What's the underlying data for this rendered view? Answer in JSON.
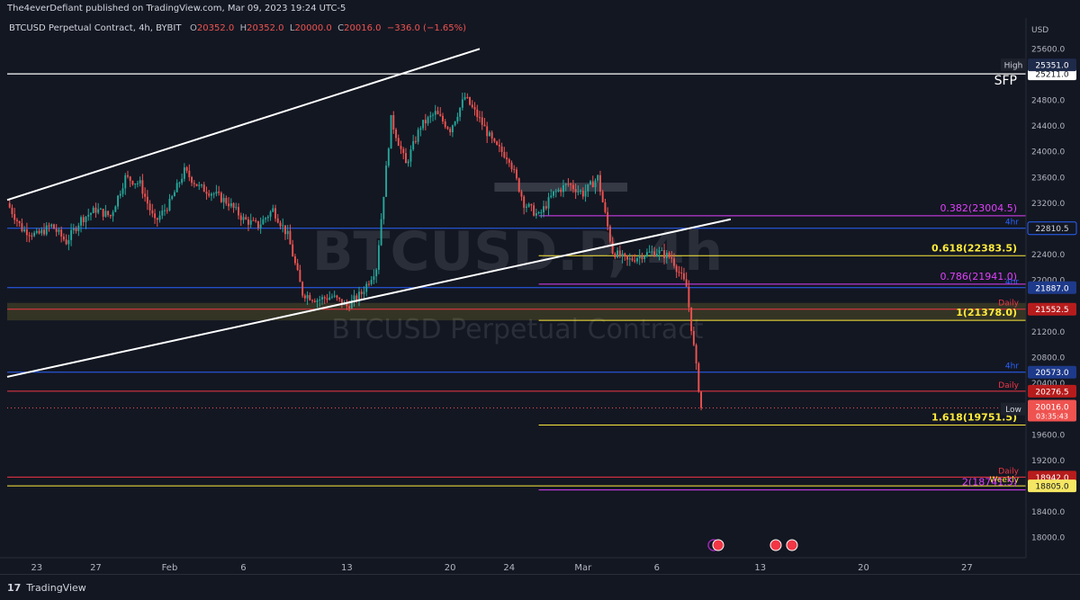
{
  "publisher": "The4everDefiant published on TradingView.com, Mar 09, 2023 19:24 UTC-5",
  "symbol_line": {
    "name": "BTCUSD Perpetual Contract, 4h, BYBIT",
    "o_label": "O",
    "o": "20352.0",
    "h_label": "H",
    "h": "20352.0",
    "l_label": "L",
    "l": "20000.0",
    "c_label": "C",
    "c": "20016.0",
    "change": "−336.0 (−1.65%)"
  },
  "watermark": {
    "ticker": "BTCUSD.P, 4h",
    "subtitle": "BTCUSD Perpetual Contract"
  },
  "footer": {
    "logo_glyph": "17",
    "brand": "TradingView"
  },
  "colors": {
    "background": "#131722",
    "up_candle": "#26a69a",
    "down_candle": "#ef5350",
    "blue_level": "#2962ff",
    "red_level": "#f23645",
    "yellow_level": "#ffeb3b",
    "magenta_level": "#e040fb",
    "white_line": "#ffffff"
  },
  "chart_data": {
    "type": "candlestick",
    "currency": "USD",
    "ylim": [
      17800,
      25800
    ],
    "y_ticks": [
      18000,
      18400,
      18800,
      19200,
      19600,
      20000,
      20400,
      20800,
      21200,
      21600,
      22000,
      22400,
      22800,
      23200,
      23600,
      24000,
      24400,
      24800,
      25200,
      25600
    ],
    "y_tick_labels": [
      "18000.0",
      "18400.0",
      "18800.0",
      "19200.0",
      "19600.0",
      "20000.0",
      "20400.0",
      "20800.0",
      "21200.0",
      "21600.0",
      "22000.0",
      "22400.0",
      "22800.0",
      "23200.0",
      "23600.0",
      "24000.0",
      "24400.0",
      "24800.0",
      "25200.0",
      "25600.0"
    ],
    "x_ticks": [
      {
        "label": "23",
        "date": "2023-01-23"
      },
      {
        "label": "27",
        "date": "2023-01-27"
      },
      {
        "label": "Feb",
        "date": "2023-02-01"
      },
      {
        "label": "6",
        "date": "2023-02-06"
      },
      {
        "label": "13",
        "date": "2023-02-13"
      },
      {
        "label": "20",
        "date": "2023-02-20"
      },
      {
        "label": "24",
        "date": "2023-02-24"
      },
      {
        "label": "Mar",
        "date": "2023-03-01"
      },
      {
        "label": "6",
        "date": "2023-03-06"
      },
      {
        "label": "13",
        "date": "2023-03-13"
      },
      {
        "label": "20",
        "date": "2023-03-20"
      },
      {
        "label": "27",
        "date": "2023-03-27"
      }
    ],
    "x_range": [
      "2023-01-21",
      "2023-03-31"
    ],
    "price_path": [
      [
        "2023-01-21",
        23200
      ],
      [
        "2023-01-22",
        22800
      ],
      [
        "2023-01-23",
        22700
      ],
      [
        "2023-01-24",
        22850
      ],
      [
        "2023-01-25",
        22600
      ],
      [
        "2023-01-26",
        22950
      ],
      [
        "2023-01-27",
        23100
      ],
      [
        "2023-01-28",
        23000
      ],
      [
        "2023-01-29",
        23600
      ],
      [
        "2023-01-30",
        23500
      ],
      [
        "2023-01-31",
        22900
      ],
      [
        "2023-02-01",
        23200
      ],
      [
        "2023-02-02",
        23700
      ],
      [
        "2023-02-03",
        23450
      ],
      [
        "2023-02-04",
        23350
      ],
      [
        "2023-02-05",
        23200
      ],
      [
        "2023-02-06",
        22950
      ],
      [
        "2023-02-07",
        22850
      ],
      [
        "2023-02-08",
        23100
      ],
      [
        "2023-02-09",
        22700
      ],
      [
        "2023-02-10",
        21800
      ],
      [
        "2023-02-11",
        21700
      ],
      [
        "2023-02-12",
        21750
      ],
      [
        "2023-02-13",
        21600
      ],
      [
        "2023-02-14",
        21800
      ],
      [
        "2023-02-15",
        22200
      ],
      [
        "2023-02-16",
        24500
      ],
      [
        "2023-02-17",
        23800
      ],
      [
        "2023-02-18",
        24400
      ],
      [
        "2023-02-19",
        24600
      ],
      [
        "2023-02-20",
        24350
      ],
      [
        "2023-02-21",
        24850
      ],
      [
        "2023-02-22",
        24500
      ],
      [
        "2023-02-23",
        24100
      ],
      [
        "2023-02-24",
        23900
      ],
      [
        "2023-02-25",
        23200
      ],
      [
        "2023-02-26",
        23000
      ],
      [
        "2023-02-27",
        23350
      ],
      [
        "2023-02-28",
        23500
      ],
      [
        "2023-03-01",
        23350
      ],
      [
        "2023-03-02",
        23600
      ],
      [
        "2023-03-03",
        22450
      ],
      [
        "2023-03-04",
        22300
      ],
      [
        "2023-03-05",
        22400
      ],
      [
        "2023-03-06",
        22450
      ],
      [
        "2023-03-07",
        22350
      ],
      [
        "2023-03-08",
        21900
      ],
      [
        "2023-03-09",
        20016
      ]
    ],
    "trend_lines": [
      {
        "start": [
          "2023-01-21",
          23250
        ],
        "end": [
          "2023-02-22",
          25600
        ]
      },
      {
        "start": [
          "2023-01-21",
          20500
        ],
        "end": [
          "2023-03-11",
          22950
        ]
      }
    ],
    "levels": [
      {
        "value": 25211.0,
        "color": "white",
        "full_width": true,
        "label": "",
        "tag": "25211.0",
        "tag_type": "white"
      },
      {
        "value": 22810.5,
        "color": "blue",
        "full_width": true,
        "label": "4hr",
        "tag": "22810.5",
        "tag_type": "dark"
      },
      {
        "value": 21887.0,
        "color": "blue",
        "full_width": true,
        "label": "4hr",
        "tag": "21887.0",
        "tag_type": "blue"
      },
      {
        "value": 21552.5,
        "color": "red",
        "full_width": true,
        "label": "Daily",
        "tag": "21552.5",
        "tag_type": "red"
      },
      {
        "value": 20573.0,
        "color": "blue",
        "full_width": true,
        "label": "4hr",
        "tag": "20573.0",
        "tag_type": "blue"
      },
      {
        "value": 20276.5,
        "color": "red",
        "full_width": true,
        "label": "Daily",
        "tag": "20276.5",
        "tag_type": "red"
      },
      {
        "value": 18942.0,
        "color": "red",
        "full_width": true,
        "label": "Daily",
        "tag": "18942.0",
        "tag_type": "red"
      },
      {
        "value": 18805.0,
        "color": "yellow",
        "full_width": true,
        "label": "Weekly",
        "tag": "18805.0",
        "tag_type": "yellow"
      }
    ],
    "fib_levels": [
      {
        "ratio": "0.382(23004.5)",
        "value": 23004.5,
        "color": "magenta"
      },
      {
        "ratio": "0.618(22383.5)",
        "value": 22383.5,
        "color": "yellow"
      },
      {
        "ratio": "0.786(21941.0)",
        "value": 21941.0,
        "color": "magenta"
      },
      {
        "ratio": "1(21378.0)",
        "value": 21378.0,
        "color": "yellow"
      },
      {
        "ratio": "1.618(19751.5)",
        "value": 19751.5,
        "color": "yellow"
      },
      {
        "ratio": "2(18741.5)",
        "value": 18741.5,
        "color": "magenta"
      }
    ],
    "fib_start": "2023-02-26",
    "zone": {
      "low": 21378,
      "high": 21650
    },
    "marker_tags": [
      {
        "text": "High",
        "tag": "25351.0",
        "value": 25351.0
      },
      {
        "text": "Low",
        "tag": "20000.0",
        "value": 20000.0
      }
    ],
    "last_price": {
      "value": 20016.0,
      "tag": "20016.0",
      "countdown": "03:35:43"
    },
    "annotation": "SFP",
    "resistance_box": {
      "from": "2023-02-23",
      "to": "2023-03-04",
      "value": 23450
    }
  }
}
